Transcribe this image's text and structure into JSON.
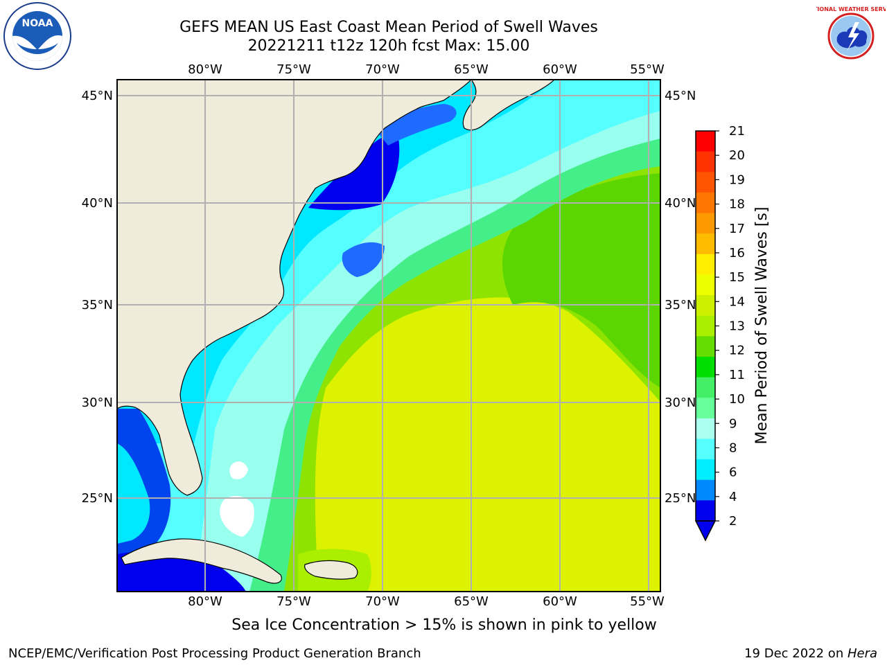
{
  "title": {
    "line1": "GEFS MEAN US East Coast Mean Period of Swell Waves",
    "line2": "20221211 t12z 120h fcst   Max: 15.00"
  },
  "logos": {
    "left": "noaa-logo",
    "right": "nws-logo",
    "left_text": "NOAA",
    "right_text": "NATIONAL WEATHER SERVICE"
  },
  "map": {
    "lon_labels": [
      "80°W",
      "75°W",
      "70°W",
      "65°W",
      "60°W",
      "55°W"
    ],
    "lat_labels": [
      "45°N",
      "40°N",
      "35°N",
      "30°N",
      "25°N"
    ],
    "land_color": "#efecdc",
    "grid_color": "#b0b0b0"
  },
  "colorbar": {
    "label": "Mean Period of Swell Waves [s]",
    "ticks": [
      "21",
      "20",
      "19",
      "18",
      "17",
      "16",
      "15",
      "14",
      "13",
      "12",
      "11",
      "10",
      "9",
      "8",
      "6",
      "4",
      "2"
    ],
    "colors": [
      "#ff0000",
      "#ff3300",
      "#ff5500",
      "#ff7700",
      "#ff9900",
      "#ffbb00",
      "#ffee00",
      "#eeff00",
      "#ccf000",
      "#aaee00",
      "#66dd00",
      "#00dd00",
      "#44ee66",
      "#66ff99",
      "#aaffee",
      "#55ffff",
      "#00eeff",
      "#0088ff",
      "#0000ee"
    ]
  },
  "footer": {
    "note": "Sea Ice Concentration > 15% is shown in pink to yellow",
    "left": "NCEP/EMC/Verification Post Processing Product Generation Branch",
    "right_date": "19 Dec 2022 on ",
    "right_machine": "Hera"
  }
}
